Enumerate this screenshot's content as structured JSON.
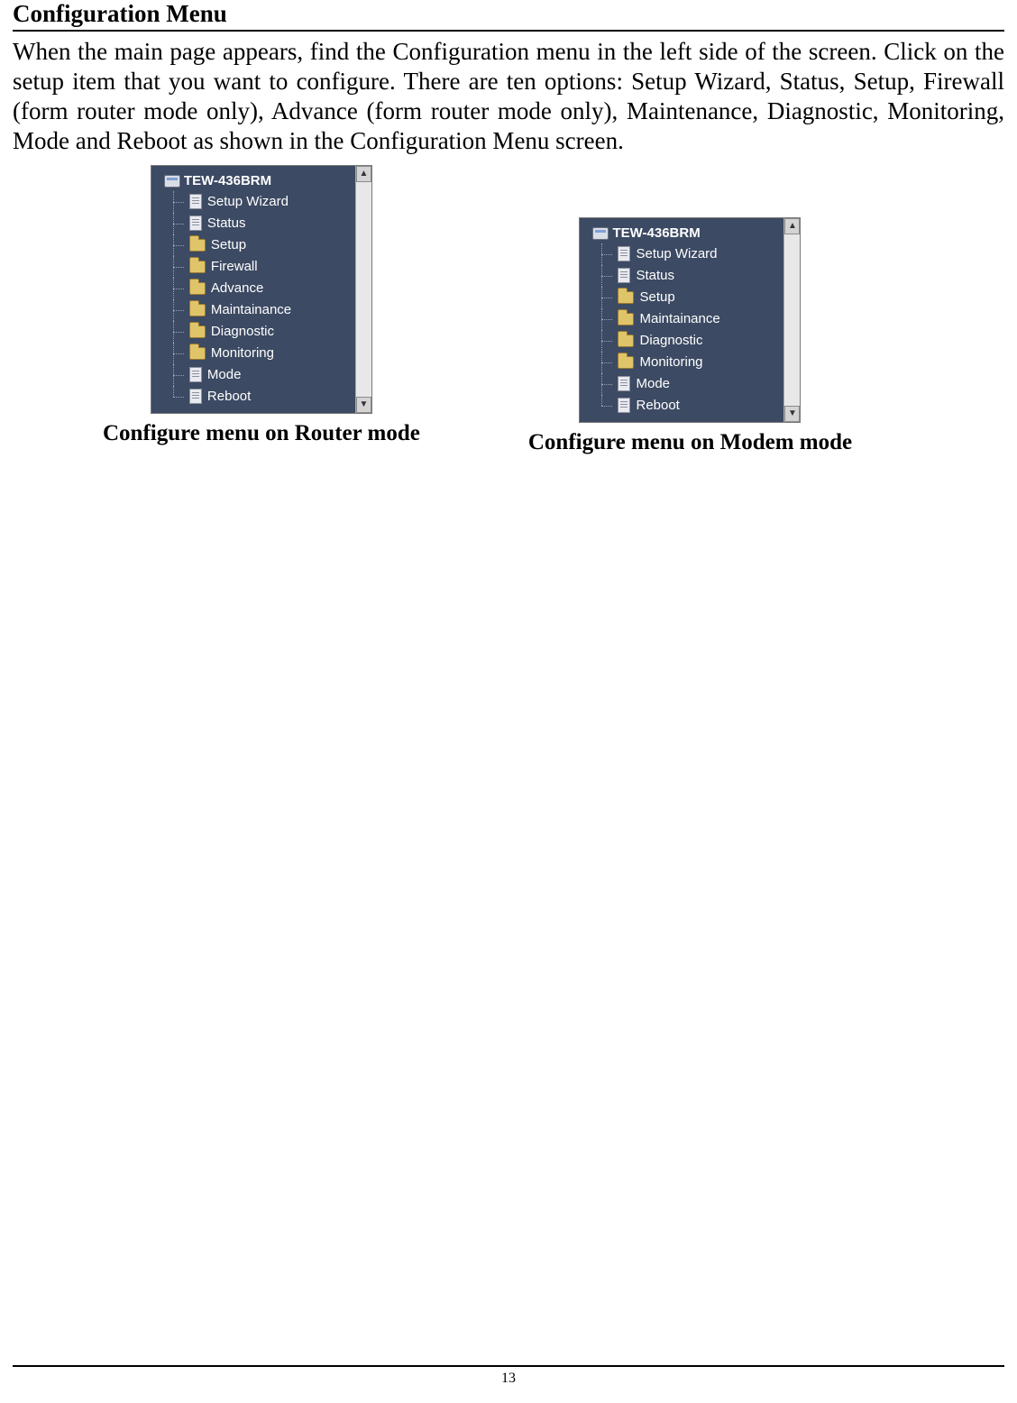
{
  "heading": "Configuration Menu",
  "paragraph": "When the main page appears, find the Configuration menu in the left side of the screen. Click on the setup item that you want to configure. There are ten options: Setup Wizard, Status, Setup, Firewall (form router mode only), Advance (form router mode only), Maintenance, Diagnostic, Monitoring, Mode and Reboot as shown in the Configuration Menu screen.",
  "router_tree": {
    "root_label": "TEW-436BRM",
    "items": [
      {
        "label": "Setup Wizard",
        "icon": "page"
      },
      {
        "label": "Status",
        "icon": "page"
      },
      {
        "label": "Setup",
        "icon": "folder"
      },
      {
        "label": "Firewall",
        "icon": "folder"
      },
      {
        "label": "Advance",
        "icon": "folder"
      },
      {
        "label": "Maintainance",
        "icon": "folder"
      },
      {
        "label": "Diagnostic",
        "icon": "folder"
      },
      {
        "label": "Monitoring",
        "icon": "folder"
      },
      {
        "label": "Mode",
        "icon": "page"
      },
      {
        "label": "Reboot",
        "icon": "page"
      }
    ],
    "caption": "Configure menu on Router mode"
  },
  "modem_tree": {
    "root_label": "TEW-436BRM",
    "items": [
      {
        "label": "Setup Wizard",
        "icon": "page"
      },
      {
        "label": "Status",
        "icon": "page"
      },
      {
        "label": "Setup",
        "icon": "folder"
      },
      {
        "label": "Maintainance",
        "icon": "folder"
      },
      {
        "label": "Diagnostic",
        "icon": "folder"
      },
      {
        "label": "Monitoring",
        "icon": "folder"
      },
      {
        "label": "Mode",
        "icon": "page"
      },
      {
        "label": "Reboot",
        "icon": "page"
      }
    ],
    "caption": "Configure menu on Modem mode"
  },
  "page_number": "13",
  "colors": {
    "panel_bg": "#3c4a63",
    "tree_text": "#ffffff",
    "folder": "#e0c46a",
    "page_icon": "#e8eaf0",
    "body_text": "#000000",
    "rule": "#000000"
  },
  "fonts": {
    "body": "Times New Roman",
    "tree": "Arial",
    "heading_size_pt": 20,
    "body_size_pt": 20,
    "caption_size_pt": 18,
    "tree_size_pt": 11
  }
}
